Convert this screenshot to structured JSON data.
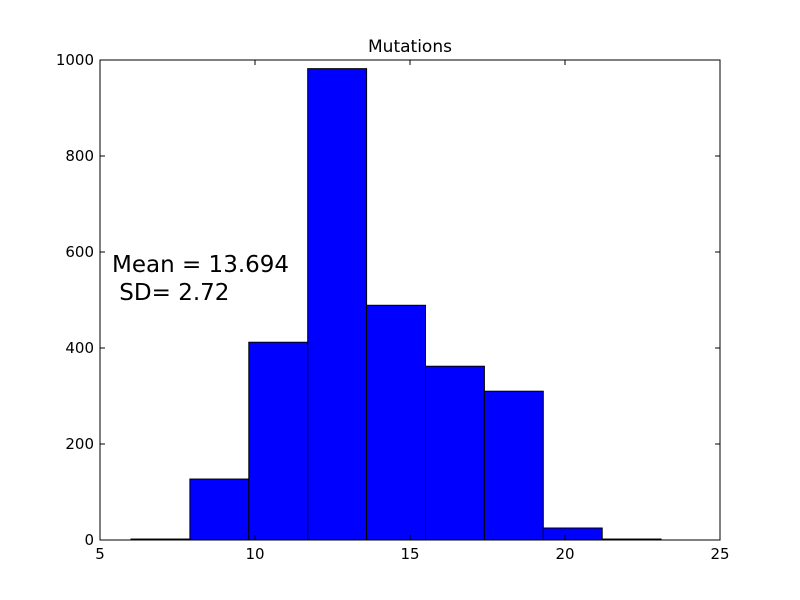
{
  "chart_data": {
    "type": "bar",
    "title": "Mutations",
    "xlabel": "",
    "ylabel": "",
    "xlim": [
      5,
      25
    ],
    "ylim": [
      0,
      1000
    ],
    "x_ticks": [
      5,
      10,
      15,
      20,
      25
    ],
    "y_ticks": [
      0,
      200,
      400,
      600,
      800,
      1000
    ],
    "grid": false,
    "bar_color": "#0000ff",
    "edge_color": "#000000",
    "bins": [
      {
        "start": 6.0,
        "end": 7.9,
        "value": 2
      },
      {
        "start": 7.9,
        "end": 9.8,
        "value": 127
      },
      {
        "start": 9.8,
        "end": 11.7,
        "value": 412
      },
      {
        "start": 11.7,
        "end": 13.6,
        "value": 982
      },
      {
        "start": 13.6,
        "end": 15.5,
        "value": 489
      },
      {
        "start": 15.5,
        "end": 17.4,
        "value": 362
      },
      {
        "start": 17.4,
        "end": 19.3,
        "value": 310
      },
      {
        "start": 19.3,
        "end": 21.2,
        "value": 25
      },
      {
        "start": 21.2,
        "end": 23.1,
        "value": 2
      }
    ],
    "annotation_lines": [
      "Mean = 13.694",
      " SD= 2.72"
    ]
  }
}
